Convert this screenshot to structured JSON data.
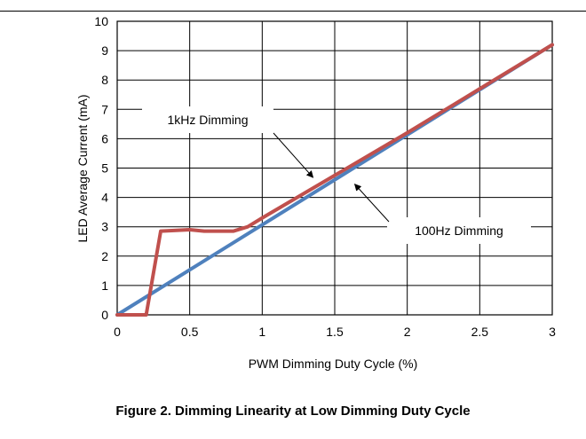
{
  "caption": "Figure 2. Dimming Linearity at Low Dimming Duty Cycle",
  "colors": {
    "line_1khz": "#C0504D",
    "line_100hz": "#4F81BD",
    "grid": "#000000"
  },
  "chart_data": {
    "type": "line",
    "title": "",
    "xlabel": "PWM Dimming Duty Cycle (%)",
    "ylabel": "LED Average Current (mA)",
    "xlim": [
      0,
      3
    ],
    "ylim": [
      0,
      10
    ],
    "x_ticks": [
      "0",
      "0.5",
      "1",
      "1.5",
      "2",
      "2.5",
      "3"
    ],
    "y_ticks": [
      "0",
      "1",
      "2",
      "3",
      "4",
      "5",
      "6",
      "7",
      "8",
      "9",
      "10"
    ],
    "grid": true,
    "series": [
      {
        "name": "1kHz Dimming",
        "color": "#C0504D",
        "points": [
          [
            0,
            0
          ],
          [
            0.2,
            0
          ],
          [
            0.3,
            2.85
          ],
          [
            0.5,
            2.9
          ],
          [
            0.6,
            2.85
          ],
          [
            0.8,
            2.85
          ],
          [
            0.9,
            3.0
          ],
          [
            1.0,
            3.3
          ],
          [
            1.5,
            4.75
          ],
          [
            2.0,
            6.2
          ],
          [
            2.5,
            7.7
          ],
          [
            3.0,
            9.2
          ]
        ]
      },
      {
        "name": "100Hz Dimming",
        "color": "#4F81BD",
        "points": [
          [
            0,
            0
          ],
          [
            3.0,
            9.2
          ]
        ]
      }
    ],
    "annotations": [
      {
        "text": "1kHz Dimming",
        "x": 1.35,
        "y": 4.5
      },
      {
        "text": "100Hz Dimming",
        "x": 1.62,
        "y": 4.6
      }
    ]
  }
}
